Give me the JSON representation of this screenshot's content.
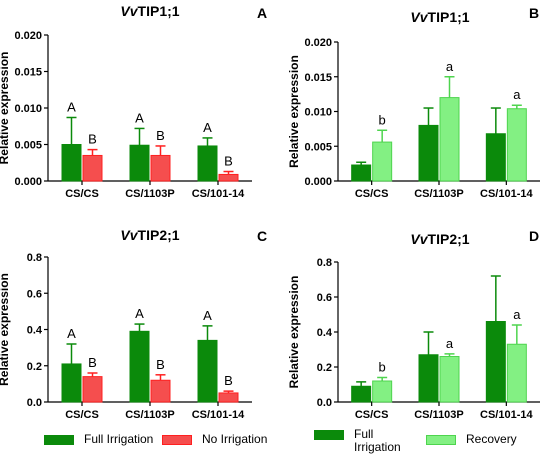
{
  "chart_data": [
    {
      "panel_letter": "A",
      "title_prefix": "Vv",
      "title_suffix": "TIP1;1",
      "type": "bar",
      "ylabel": "Relative expression",
      "ylim": [
        0,
        0.02
      ],
      "yticks": [
        "0.000",
        "0.005",
        "0.010",
        "0.015",
        "0.020"
      ],
      "categories": [
        "CS/CS",
        "CS/1103P",
        "CS/101-14"
      ],
      "series": [
        {
          "name": "Full Irrigation",
          "values": [
            0.005,
            0.0049,
            0.0048
          ],
          "errors": [
            0.0037,
            0.0023,
            0.0011
          ],
          "labels": [
            "A",
            "A",
            "A"
          ]
        },
        {
          "name": "No Irrigation",
          "values": [
            0.0035,
            0.0035,
            0.0009
          ],
          "errors": [
            0.0008,
            0.0013,
            0.0004
          ],
          "labels": [
            "B",
            "B",
            "B"
          ]
        }
      ]
    },
    {
      "panel_letter": "B",
      "title_prefix": "Vv",
      "title_suffix": "TIP1;1",
      "type": "bar",
      "ylabel": "Relative expression",
      "ylim": [
        0,
        0.02
      ],
      "yticks": [
        "0.000",
        "0.005",
        "0.010",
        "0.015",
        "0.020"
      ],
      "categories": [
        "CS/CS",
        "CS/1103P",
        "CS/101-14"
      ],
      "series": [
        {
          "name": "Full Irrigation",
          "values": [
            0.0023,
            0.008,
            0.0068
          ],
          "errors": [
            0.0004,
            0.0025,
            0.0037
          ],
          "labels": [
            "",
            "",
            ""
          ]
        },
        {
          "name": "Recovery",
          "values": [
            0.0056,
            0.012,
            0.0104
          ],
          "errors": [
            0.0017,
            0.003,
            0.0005
          ],
          "labels": [
            "b",
            "a",
            "a"
          ]
        }
      ]
    },
    {
      "panel_letter": "C",
      "title_prefix": "Vv",
      "title_suffix": "TIP2;1",
      "type": "bar",
      "ylabel": "Relative expression",
      "ylim": [
        0,
        0.8
      ],
      "yticks": [
        "0.0",
        "0.2",
        "0.4",
        "0.6",
        "0.8"
      ],
      "categories": [
        "CS/CS",
        "CS/1103P",
        "CS/101-14"
      ],
      "series": [
        {
          "name": "Full Irrigation",
          "values": [
            0.21,
            0.39,
            0.34
          ],
          "errors": [
            0.11,
            0.04,
            0.08
          ],
          "labels": [
            "A",
            "A",
            "A"
          ]
        },
        {
          "name": "No Irrigation",
          "values": [
            0.14,
            0.12,
            0.05
          ],
          "errors": [
            0.02,
            0.03,
            0.01
          ],
          "labels": [
            "B",
            "B",
            "B"
          ]
        }
      ]
    },
    {
      "panel_letter": "D",
      "title_prefix": "Vv",
      "title_suffix": "TIP2;1",
      "type": "bar",
      "ylabel": "Relative expression",
      "ylim": [
        0,
        0.8
      ],
      "yticks": [
        "0.0",
        "0.2",
        "0.4",
        "0.6",
        "0.8"
      ],
      "categories": [
        "CS/CS",
        "CS/1103P",
        "CS/101-14"
      ],
      "series": [
        {
          "name": "Full Irrigation",
          "values": [
            0.09,
            0.27,
            0.46
          ],
          "errors": [
            0.025,
            0.13,
            0.26
          ],
          "labels": [
            "",
            "",
            ""
          ]
        },
        {
          "name": "Recovery",
          "values": [
            0.12,
            0.26,
            0.33
          ],
          "errors": [
            0.02,
            0.015,
            0.11
          ],
          "labels": [
            "b",
            "a",
            "a"
          ]
        }
      ]
    }
  ],
  "colors": {
    "full_irrigation": "#0b8a0b",
    "full_irrigation_err": "#0b8a0b",
    "no_irrigation": "#f54e4e",
    "no_irrigation_err": "#ff2020",
    "recovery": "#83f083",
    "recovery_err": "#4ed44e"
  },
  "legends": {
    "left": {
      "full": "Full Irrigation",
      "other": "No Irrigation"
    },
    "right": {
      "full_line1": "Full",
      "full_line2": "Irrigation",
      "other": "Recovery"
    }
  }
}
